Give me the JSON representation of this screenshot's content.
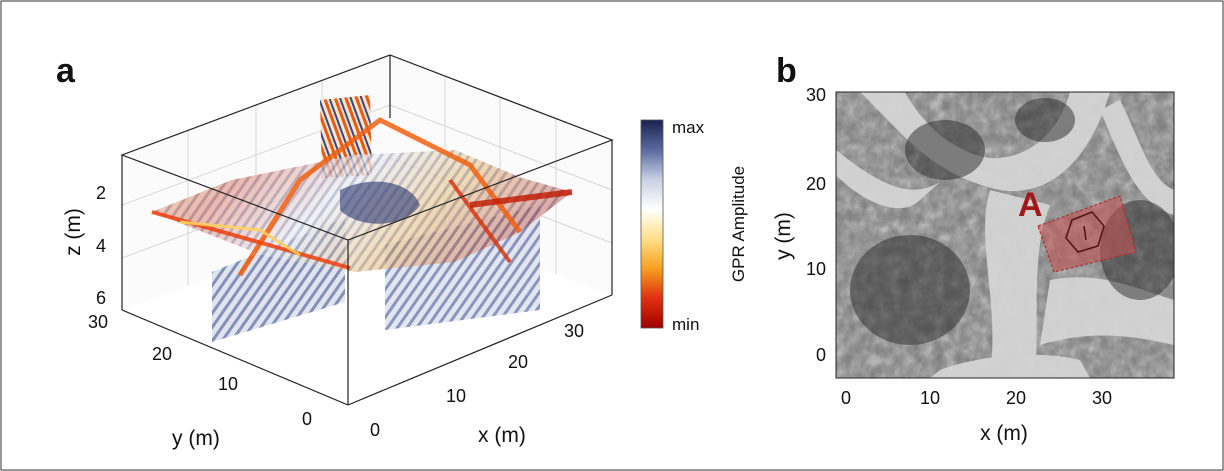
{
  "panel_a": {
    "letter": "a"
  },
  "panel_b": {
    "letter": "b"
  },
  "colorbar": {
    "label": "GPR Amplitude",
    "max_label": "max",
    "min_label": "min",
    "colors": [
      "#1a2250",
      "#5a6aa0",
      "#c8d0e4",
      "#ffffff",
      "#ffe08a",
      "#f7a020",
      "#e03010",
      "#a00000"
    ]
  },
  "chart_data": [
    {
      "type": "other",
      "kind": "3d-volume-slices",
      "x_axis": {
        "label": "x (m)",
        "ticks": [
          "0",
          "10",
          "20",
          "30"
        ]
      },
      "y_axis": {
        "label": "y (m)",
        "ticks": [
          "0",
          "10",
          "20",
          "30"
        ]
      },
      "z_axis": {
        "label": "z (m)",
        "ticks": [
          "2",
          "4",
          "6"
        ],
        "reversed": true
      },
      "grid": true
    },
    {
      "type": "other",
      "kind": "aerial-image",
      "x_axis": {
        "label": "x (m)",
        "ticks": [
          "0",
          "10",
          "20",
          "30"
        ]
      },
      "y_axis": {
        "label": "y (m)",
        "ticks": [
          "0",
          "10",
          "20",
          "30"
        ]
      },
      "annotation": {
        "text": "A",
        "color": "#a01818"
      }
    }
  ]
}
